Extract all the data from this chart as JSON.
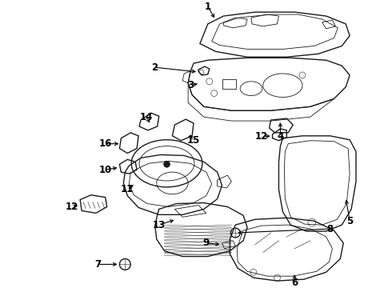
{
  "bg_color": "#ffffff",
  "line_color": "#1a1a1a",
  "text_color": "#000000",
  "label_fontsize": 8.5,
  "figsize": [
    4.9,
    3.6
  ],
  "dpi": 100
}
